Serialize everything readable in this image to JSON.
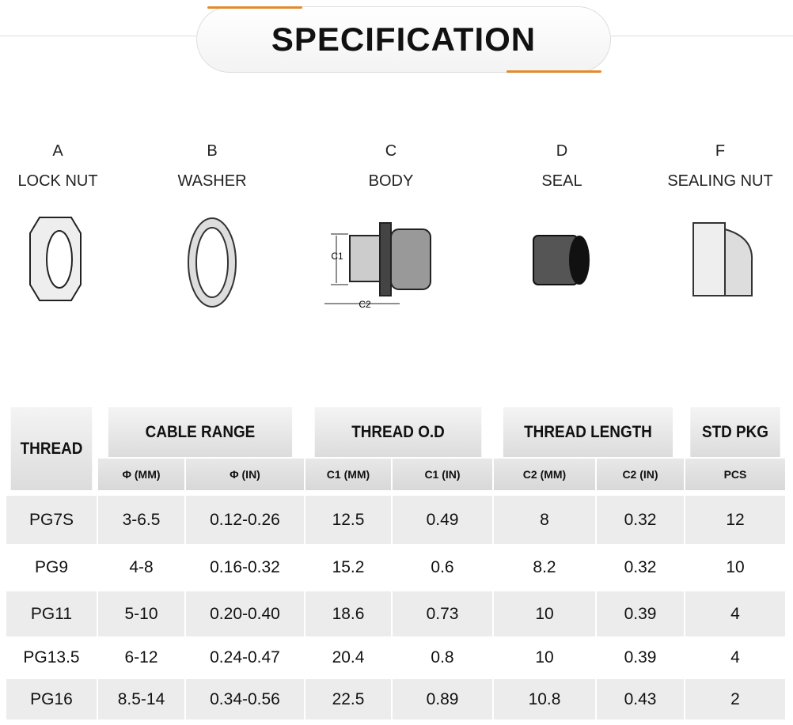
{
  "header": {
    "title": "SPECIFICATION"
  },
  "parts": [
    {
      "letter": "A",
      "name": "LOCK NUT"
    },
    {
      "letter": "B",
      "name": "WASHER"
    },
    {
      "letter": "C",
      "name": "BODY"
    },
    {
      "letter": "D",
      "name": "SEAL"
    },
    {
      "letter": "F",
      "name": "SEALING NUT"
    }
  ],
  "diagram": {
    "c1": "C1",
    "c2": "C2"
  },
  "table": {
    "thread": "THREAD",
    "groups": [
      {
        "label": "CABLE RANGE",
        "sub": [
          "Φ (MM)",
          "Φ (IN)"
        ]
      },
      {
        "label": "THREAD O.D",
        "sub": [
          "C1 (MM)",
          "C1 (IN)"
        ]
      },
      {
        "label": "THREAD LENGTH",
        "sub": [
          "C2 (MM)",
          "C2 (IN)"
        ]
      },
      {
        "label": "STD PKG",
        "sub": [
          "PCS"
        ]
      }
    ],
    "rows": [
      [
        "PG7S",
        "3-6.5",
        "0.12-0.26",
        "12.5",
        "0.49",
        "8",
        "0.32",
        "12"
      ],
      [
        "PG9",
        "4-8",
        "0.16-0.32",
        "15.2",
        "0.6",
        "8.2",
        "0.32",
        "10"
      ],
      [
        "PG11",
        "5-10",
        "0.20-0.40",
        "18.6",
        "0.73",
        "10",
        "0.39",
        "4"
      ],
      [
        "PG13.5",
        "6-12",
        "0.24-0.47",
        "20.4",
        "0.8",
        "10",
        "0.39",
        "4"
      ],
      [
        "PG16",
        "8.5-14",
        "0.34-0.56",
        "22.5",
        "0.89",
        "10.8",
        "0.43",
        "2"
      ]
    ]
  }
}
